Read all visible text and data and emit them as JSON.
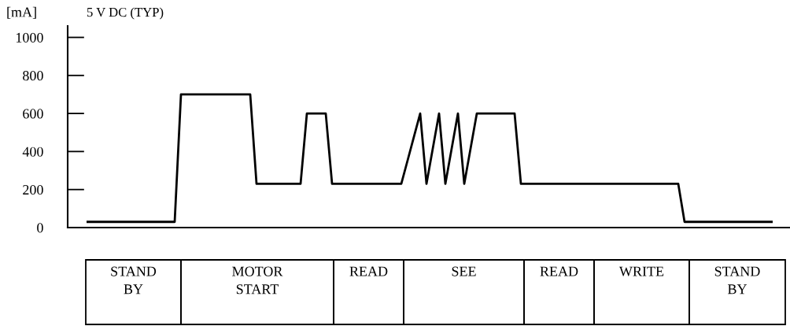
{
  "chart_data": [
    {
      "type": "line",
      "title": "5 V DC (TYP)",
      "ylabel": "[mA]",
      "categories": [
        null,
        null,
        null,
        null,
        null,
        null,
        null,
        null,
        null,
        null,
        null,
        null,
        null,
        null,
        null,
        null,
        null,
        null,
        null,
        null,
        null,
        null,
        null,
        null,
        null,
        null,
        null,
        null,
        null,
        null,
        null,
        null,
        null,
        null,
        null,
        null,
        null,
        null,
        null,
        null,
        null,
        null,
        null,
        null,
        null,
        null,
        null,
        null,
        null,
        null,
        null,
        null,
        null,
        null,
        null,
        null,
        null,
        null,
        null,
        null,
        null,
        null,
        null,
        null,
        null,
        null,
        null,
        null,
        null,
        null,
        null,
        null,
        null,
        null,
        null,
        null,
        null,
        null,
        null,
        null,
        null,
        null,
        null,
        null,
        null,
        null,
        null,
        null,
        null,
        null,
        null,
        null,
        null,
        null,
        null,
        null,
        null,
        null,
        null,
        null,
        null,
        null,
        null,
        null,
        null,
        null,
        null,
        null,
        null,
        null
      ],
      "series": [
        {
          "color": "#000000",
          "values": [
            30,
            30,
            30,
            30,
            30,
            30,
            30,
            30,
            30,
            30,
            30,
            30,
            30,
            30,
            30,
            700,
            700,
            700,
            700,
            700,
            700,
            700,
            700,
            700,
            700,
            700,
            700,
            230,
            230,
            230,
            230,
            230,
            230,
            230,
            230,
            600,
            600,
            600,
            600,
            230,
            230,
            230,
            230,
            230,
            230,
            230,
            230,
            230,
            230,
            230,
            230,
            353,
            477,
            600,
            230,
            415,
            600,
            230,
            415,
            600,
            230,
            415,
            600,
            600,
            600,
            600,
            600,
            600,
            600,
            230,
            230,
            230,
            230,
            230,
            230,
            230,
            230,
            230,
            230,
            230,
            230,
            230,
            230,
            230,
            230,
            230,
            230,
            230,
            230,
            230,
            230,
            230,
            230,
            230,
            230,
            30,
            30,
            30,
            30,
            30,
            30,
            30,
            30,
            30,
            30,
            30,
            30,
            30,
            30,
            30
          ]
        }
      ],
      "ylim": [
        0,
        1060
      ],
      "yticks": [
        0,
        200,
        400,
        600,
        800,
        1000
      ],
      "tick_labels": "y"
    },
    {
      "type": "other",
      "annotations": [
        "STAND\nBY",
        "MOTOR\nSTART",
        "READ",
        "SEE",
        "READ",
        "WRITE",
        "STAND\nBY"
      ]
    }
  ]
}
